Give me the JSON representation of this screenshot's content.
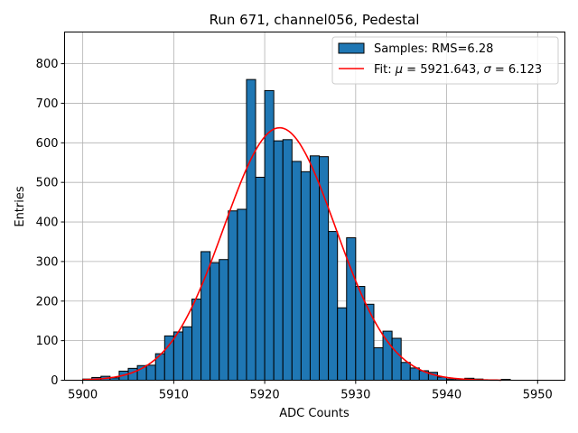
{
  "chart_data": {
    "type": "bar",
    "title": "Run 671, channel056, Pedestal",
    "xlabel": "ADC Counts",
    "ylabel": "Entries",
    "xlim": [
      5898,
      5953
    ],
    "ylim": [
      0,
      880
    ],
    "x_ticks": [
      5900,
      5910,
      5920,
      5930,
      5940,
      5950
    ],
    "y_ticks": [
      0,
      100,
      200,
      300,
      400,
      500,
      600,
      700,
      800
    ],
    "grid": true,
    "legend_position": "top-right",
    "bin_edges_start": 5900,
    "bin_width": 1,
    "histogram": {
      "name": "Samples: RMS=6.28",
      "color": "#1f77b4",
      "edge_color": "#000000",
      "values": [
        3,
        7,
        10,
        6,
        23,
        30,
        37,
        38,
        67,
        112,
        122,
        135,
        205,
        325,
        297,
        305,
        428,
        432,
        760,
        513,
        732,
        605,
        608,
        553,
        527,
        567,
        565,
        376,
        183,
        360,
        237,
        192,
        82,
        124,
        106,
        45,
        31,
        24,
        20,
        8,
        3,
        3,
        5,
        3,
        0,
        0,
        2
      ]
    },
    "fit": {
      "name": "Fit: μ = 5921.643, σ = 6.123",
      "legend_label_prefix": "Fit: ",
      "legend_label_mu": "μ",
      "legend_label_mid": " = 5921.643, ",
      "legend_label_sigma": "σ",
      "legend_label_suffix": " = 6.123",
      "color": "#ff0000",
      "mu": 5921.643,
      "sigma": 6.123,
      "amplitude": 638,
      "x_range": [
        5900,
        5946
      ]
    }
  }
}
